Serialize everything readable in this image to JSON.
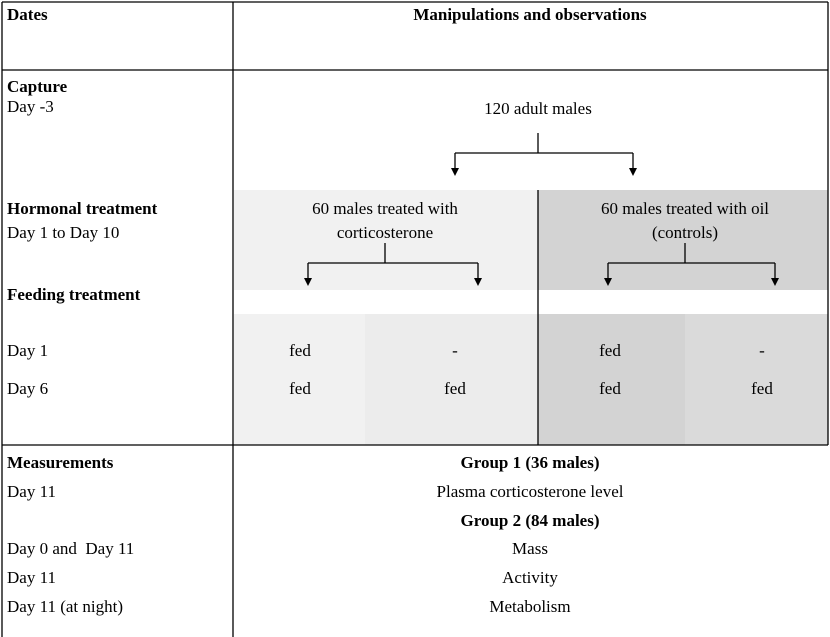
{
  "header": {
    "dates": "Dates",
    "manipulations": "Manipulations and observations"
  },
  "capture": {
    "label": "Capture",
    "day": "Day -3",
    "group": "120 adult males"
  },
  "hormonal": {
    "label": "Hormonal treatment",
    "days": "Day 1 to Day 10",
    "treatments": [
      [
        "60 males treated with",
        "corticosterone"
      ],
      [
        "60 males treated with oil",
        "(controls)"
      ]
    ]
  },
  "feeding": {
    "label": "Feeding treatment",
    "rows": [
      {
        "day": "Day 1",
        "cells": [
          "fed",
          "-",
          "fed",
          "-"
        ]
      },
      {
        "day": "Day 6",
        "cells": [
          "fed",
          "fed",
          "fed",
          "fed"
        ]
      }
    ]
  },
  "measurements": {
    "label": "Measurements",
    "groups": [
      {
        "name": "Group 1 (36 males)",
        "items": [
          {
            "day": "Day 11",
            "measure": "Plasma corticosterone level"
          }
        ]
      },
      {
        "name": "Group 2 (84 males)",
        "items": [
          {
            "day": "Day 0 and  Day 11",
            "measure": "Mass"
          },
          {
            "day": "Day 11",
            "measure": "Activity"
          },
          {
            "day": "Day 11 (at night)",
            "measure": "Metabolism"
          }
        ]
      }
    ]
  }
}
